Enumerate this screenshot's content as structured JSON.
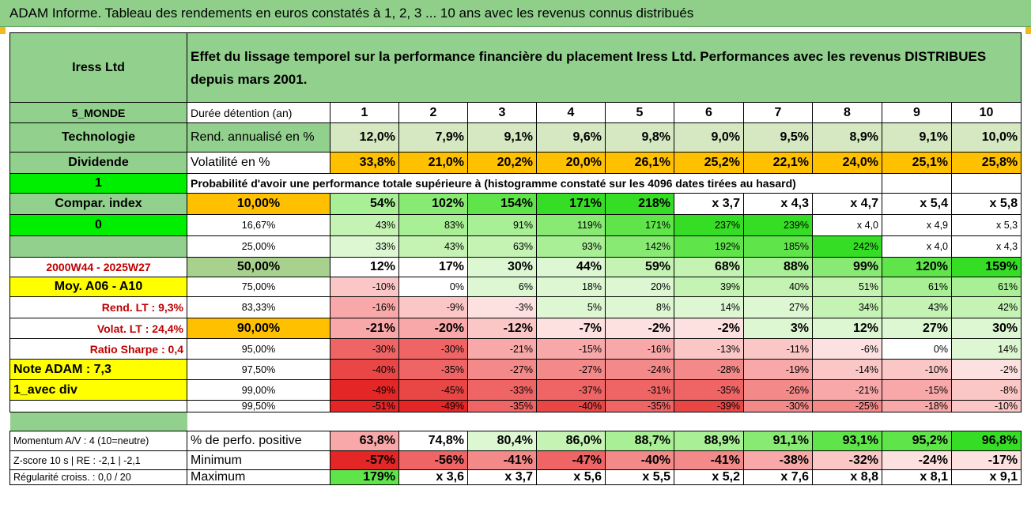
{
  "title": "ADAM Informe. Tableau des rendements en euros constatés à 1, 2, 3 ... 10 ans avec les revenus connus distribués",
  "company": "Iress Ltd",
  "header_text": "Effet du lissage temporel sur la performance financière du placement Iress Ltd. Performances avec les revenus DISTRIBUES depuis mars 2001.",
  "colors": {
    "title_bg": "#8fcf8a",
    "label_green": "#92d08d",
    "volatility": "#ffc000",
    "yellow": "#ffff00",
    "bright_green": "#00ee00",
    "light_green": "#d5e8c1"
  },
  "left_panel": {
    "region": "5_MONDE",
    "sector": "Technologie",
    "dividend": "Dividende",
    "one": "1",
    "compar_index": "Compar. index",
    "zero": "0",
    "period": "2000W44 - 2025W27",
    "moy": "Moy. A06 - A10",
    "rend_lt": "Rend. LT :    9,3%",
    "volat_lt": "Volat. LT :    24,4%",
    "sharpe": "Ratio Sharpe :    0,4",
    "note": "Note ADAM : 7,3",
    "avec_div": "1_avec div"
  },
  "row_labels": {
    "duration": "Durée détention (an)",
    "annualized": "Rend. annualisé en %",
    "volatility": "Volatilité en %",
    "probability": "Probabilité d'avoir une performance totale supérieure à (histogramme constaté sur les 4096 dates tirées au hasard)"
  },
  "years": [
    "1",
    "2",
    "3",
    "4",
    "5",
    "6",
    "7",
    "8",
    "9",
    "10"
  ],
  "annualized": [
    "12,0%",
    "7,9%",
    "9,1%",
    "9,6%",
    "9,8%",
    "9,0%",
    "9,5%",
    "8,9%",
    "9,1%",
    "10,0%"
  ],
  "volatility": [
    "33,8%",
    "21,0%",
    "20,2%",
    "20,0%",
    "26,1%",
    "25,2%",
    "22,1%",
    "24,0%",
    "25,1%",
    "25,8%"
  ],
  "quantiles": [
    {
      "p": "10,00%",
      "vals": [
        "54%",
        "102%",
        "154%",
        "171%",
        "218%",
        "x 3,7",
        "x 4,3",
        "x 4,7",
        "x 5,4",
        "x 5,8"
      ]
    },
    {
      "p": "16,67%",
      "vals": [
        "43%",
        "83%",
        "91%",
        "119%",
        "171%",
        "237%",
        "239%",
        "x 4,0",
        "x 4,9",
        "x 5,3"
      ]
    },
    {
      "p": "25,00%",
      "vals": [
        "33%",
        "43%",
        "63%",
        "93%",
        "142%",
        "192%",
        "185%",
        "242%",
        "x 4,0",
        "x 4,3"
      ]
    },
    {
      "p": "50,00%",
      "vals": [
        "12%",
        "17%",
        "30%",
        "44%",
        "59%",
        "68%",
        "88%",
        "99%",
        "120%",
        "159%"
      ]
    },
    {
      "p": "75,00%",
      "vals": [
        "-10%",
        "0%",
        "6%",
        "18%",
        "20%",
        "39%",
        "40%",
        "51%",
        "61%",
        "61%"
      ]
    },
    {
      "p": "83,33%",
      "vals": [
        "-16%",
        "-9%",
        "-3%",
        "5%",
        "8%",
        "14%",
        "27%",
        "34%",
        "43%",
        "42%"
      ]
    },
    {
      "p": "90,00%",
      "vals": [
        "-21%",
        "-20%",
        "-12%",
        "-7%",
        "-2%",
        "-2%",
        "3%",
        "12%",
        "27%",
        "30%"
      ]
    },
    {
      "p": "95,00%",
      "vals": [
        "-30%",
        "-30%",
        "-21%",
        "-15%",
        "-16%",
        "-13%",
        "-11%",
        "-6%",
        "0%",
        "14%"
      ]
    },
    {
      "p": "97,50%",
      "vals": [
        "-40%",
        "-35%",
        "-27%",
        "-27%",
        "-24%",
        "-28%",
        "-19%",
        "-14%",
        "-10%",
        "-2%"
      ]
    },
    {
      "p": "99,00%",
      "vals": [
        "-49%",
        "-45%",
        "-33%",
        "-37%",
        "-31%",
        "-35%",
        "-26%",
        "-21%",
        "-15%",
        "-8%"
      ]
    },
    {
      "p": "99,50%",
      "vals": [
        "-51%",
        "-49%",
        "-35%",
        "-40%",
        "-35%",
        "-39%",
        "-30%",
        "-25%",
        "-18%",
        "-10%"
      ]
    }
  ],
  "bottom": [
    {
      "label": "Momentum A/V : 4 (10=neutre)",
      "name": "% de perfo. positive",
      "vals": [
        "63,8%",
        "74,8%",
        "80,4%",
        "86,0%",
        "88,7%",
        "88,9%",
        "91,1%",
        "93,1%",
        "95,2%",
        "96,8%"
      ]
    },
    {
      "label": "Z-score 10 s | RE : -2,1 | -2,1",
      "name": "Minimum",
      "vals": [
        "-57%",
        "-56%",
        "-41%",
        "-47%",
        "-40%",
        "-41%",
        "-38%",
        "-32%",
        "-24%",
        "-17%"
      ]
    },
    {
      "label": "Régularité croiss. : 0,0 / 20",
      "name": "Maximum",
      "vals": [
        "179%",
        "x 3,6",
        "x 3,7",
        "x 5,6",
        "x 5,5",
        "x 5,2",
        "x 7,6",
        "x 8,8",
        "x 8,1",
        "x 9,1"
      ]
    }
  ]
}
